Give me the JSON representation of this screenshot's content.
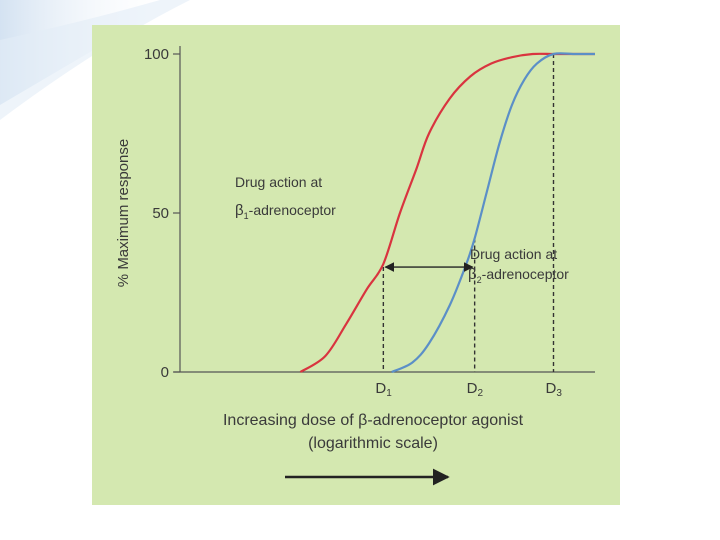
{
  "colors": {
    "panel_bg": "#d4e8b0",
    "beta1_curve": "#d9343f",
    "beta2_curve": "#5b8fc7",
    "axis": "#555555",
    "text": "#3a3a3a",
    "slide_accent": "#cfdff0"
  },
  "chart_data": {
    "type": "line",
    "title": "",
    "ylabel": "% Maximum response",
    "xlabel_line1": "Increasing dose of β-adrenoceptor agonist",
    "xlabel_line2": "(logarithmic scale)",
    "x_scale": "log",
    "xlim": [
      0,
      10
    ],
    "ylim": [
      0,
      100
    ],
    "yticks": [
      0,
      50,
      100
    ],
    "ytick_labels": [
      "0",
      "50",
      "100"
    ],
    "xticks": [
      {
        "label": "D",
        "sub": "1",
        "x": 4.9
      },
      {
        "label": "D",
        "sub": "2",
        "x": 7.1
      },
      {
        "label": "D",
        "sub": "3",
        "x": 9.0
      }
    ],
    "series": [
      {
        "key": "beta1",
        "label_line1": "Drug action at",
        "label_beta": "β",
        "label_sub": "1",
        "label_rest": "-adrenoceptor",
        "x": [
          2.9,
          3.5,
          4.0,
          4.5,
          4.9,
          5.3,
          5.7,
          6.0,
          6.5,
          7.0,
          7.5,
          8.0,
          8.5,
          9.0,
          9.5,
          10.0
        ],
        "y": [
          0,
          5,
          15,
          26,
          34,
          50,
          64,
          75,
          86,
          93,
          97,
          99,
          100,
          100,
          100,
          100
        ]
      },
      {
        "key": "beta2",
        "label_line1": "Drug action at",
        "label_beta": "β",
        "label_sub": "2",
        "label_rest": "-adrenoceptor",
        "x": [
          5.1,
          5.6,
          6.0,
          6.5,
          6.9,
          7.1,
          7.4,
          7.7,
          8.0,
          8.3,
          8.6,
          9.0,
          9.5,
          10.0
        ],
        "y": [
          0,
          3,
          9,
          21,
          34,
          42,
          57,
          72,
          84,
          92,
          97,
          100,
          100,
          100
        ]
      }
    ],
    "annotations": [
      {
        "type": "double-arrow",
        "from_x": 4.9,
        "to_x": 7.1,
        "y": 33
      },
      {
        "type": "dose-direction-arrow"
      }
    ]
  }
}
